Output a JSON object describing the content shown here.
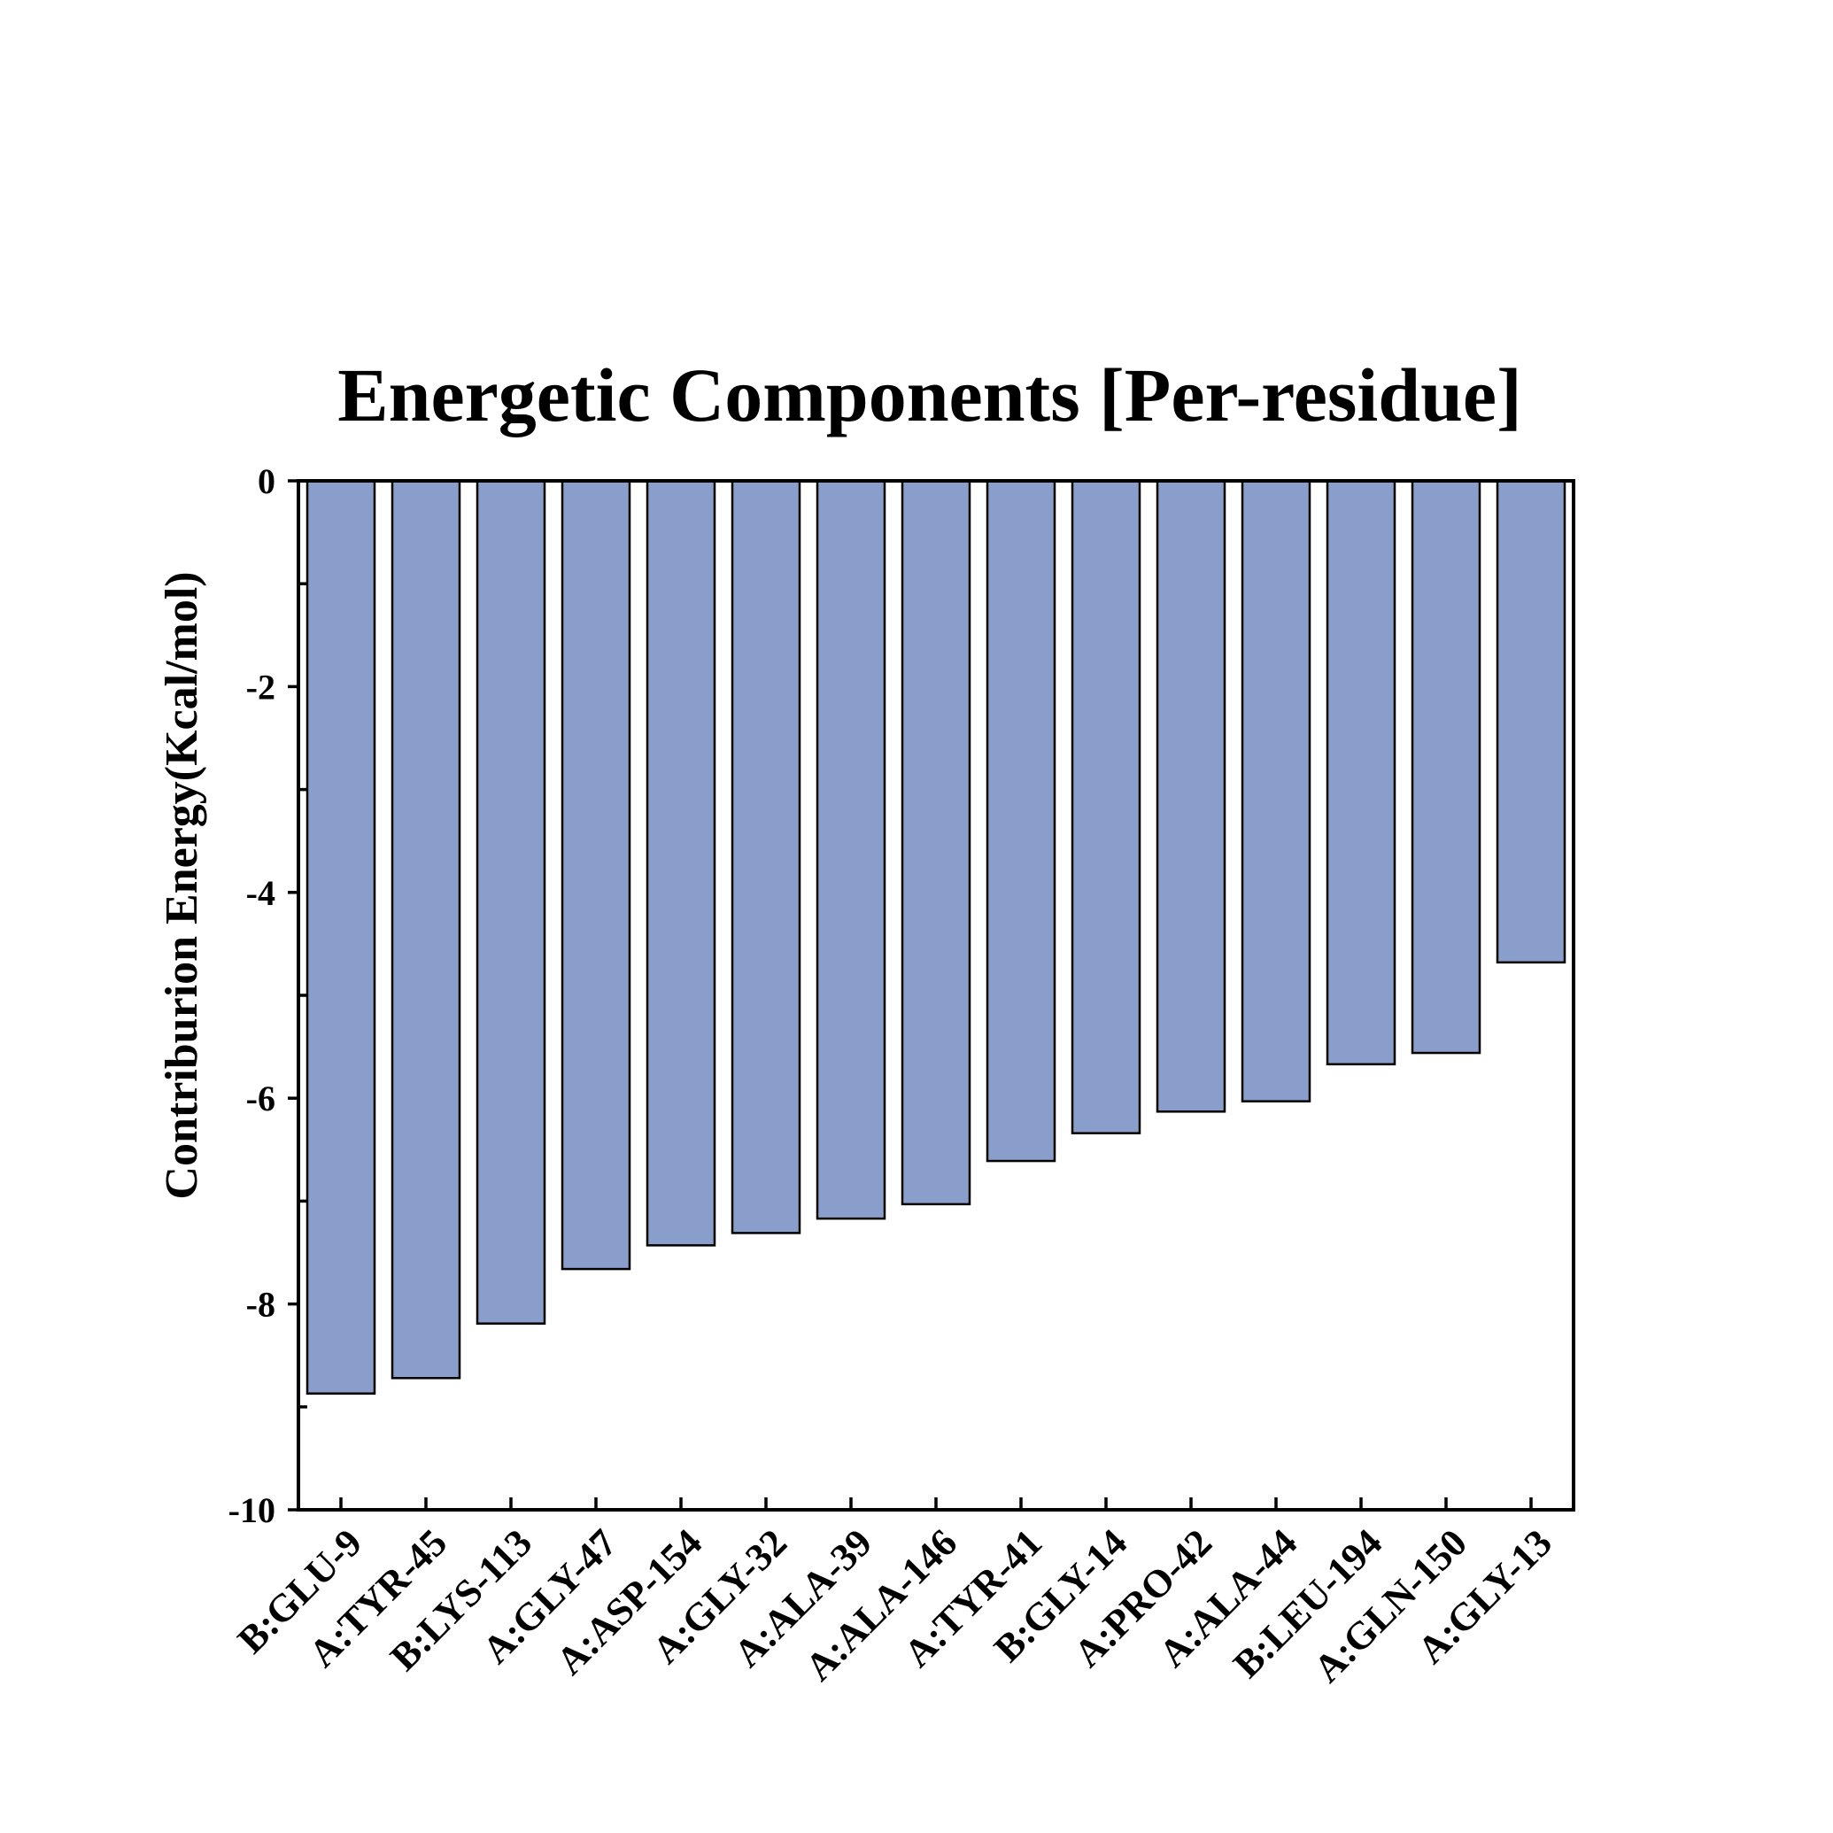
{
  "chart_data": {
    "type": "bar",
    "title": "Energetic Components [Per-residue]",
    "xlabel": "",
    "ylabel": "Contriburion Energy(Kcal/mol)",
    "ylim": [
      -10,
      0
    ],
    "yticks": [
      0,
      -2,
      -4,
      -6,
      -8,
      -10
    ],
    "ytick_labels": [
      "0",
      "-2",
      "-4",
      "-6",
      "-8",
      "-10"
    ],
    "categories": [
      "B:GLU-9",
      "A:TYR-45",
      "B:LYS-113",
      "A:GLY-47",
      "A:ASP-154",
      "A:GLY-32",
      "A:ALA-39",
      "A:ALA-146",
      "A:TYR-41",
      "B:GLY-14",
      "A:PRO-42",
      "A:ALA-44",
      "B:LEU-194",
      "A:GLN-150",
      "A:GLY-13"
    ],
    "values": [
      -8.87,
      -8.72,
      -8.19,
      -7.66,
      -7.43,
      -7.31,
      -7.17,
      -7.03,
      -6.61,
      -6.34,
      -6.13,
      -6.03,
      -5.67,
      -5.56,
      -4.68
    ],
    "bar_color": "#8a9ecb",
    "grid": false,
    "legend": "none"
  }
}
